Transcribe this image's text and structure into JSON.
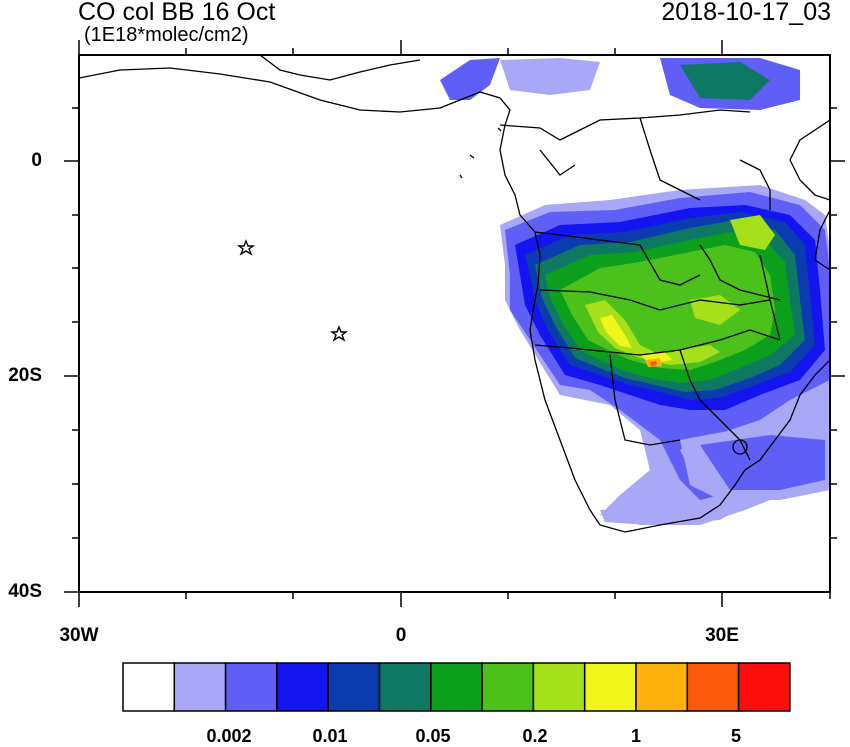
{
  "header": {
    "title": "CO col BB 16 Oct",
    "units": "(1E18*molec/cm2)",
    "timestamp": "2018-10-17_03"
  },
  "map": {
    "lon_labels": [
      "30W",
      "0",
      "30E"
    ],
    "lat_labels": [
      "0",
      "20S",
      "40S"
    ]
  },
  "colorbar": {
    "colors": [
      "#ffffff",
      "#a8a8f6",
      "#5f5ff7",
      "#1414f0",
      "#0b3caf",
      "#0f7863",
      "#0c9f1c",
      "#4cc11b",
      "#a6e01b",
      "#f1f61a",
      "#fdb10b",
      "#fc5a0b",
      "#fa0d0b"
    ],
    "labels": [
      "0.002",
      "0.01",
      "0.05",
      "0.2",
      "1",
      "5"
    ]
  }
}
